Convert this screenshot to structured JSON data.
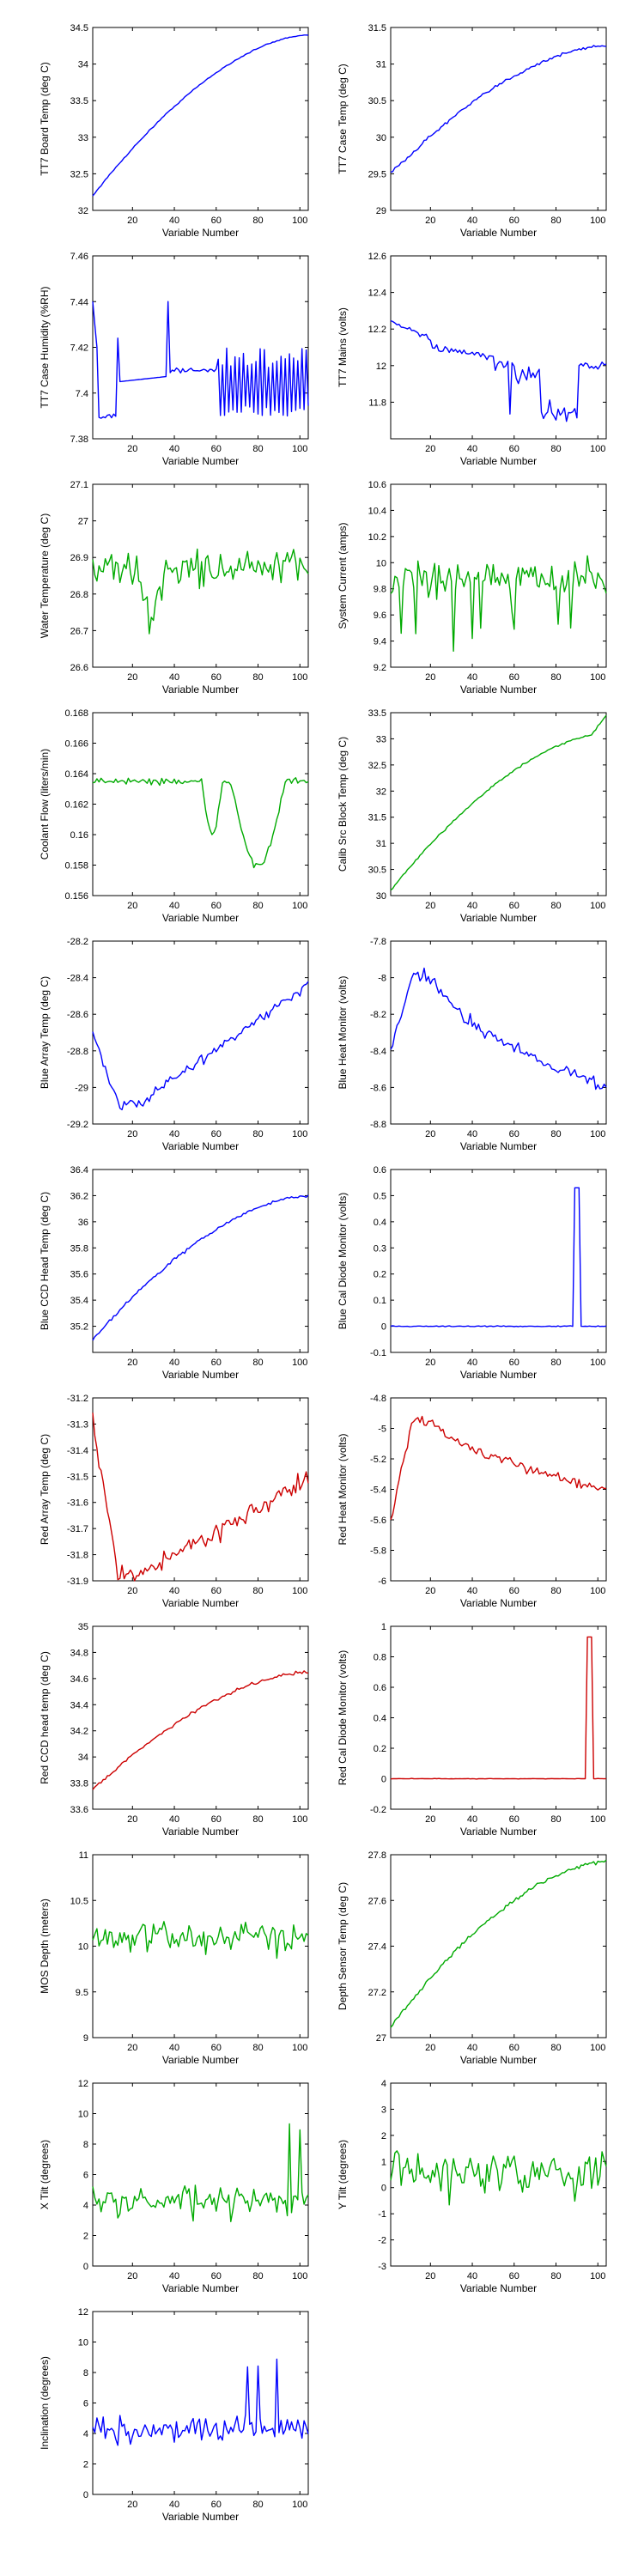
{
  "chart_data": [
    {
      "type": "line",
      "ylabel": "TT7 Board Temp (deg C)",
      "xlabel": "Variable Number",
      "color": "#0000ff",
      "xlim": [
        1,
        104
      ],
      "ylim": [
        32,
        34.5
      ],
      "yticks": [
        32,
        32.5,
        33,
        33.5,
        34,
        34.5
      ],
      "xticks": [
        20,
        40,
        60,
        80,
        100
      ],
      "gen": {
        "kind": "trend",
        "start": 32.2,
        "end": 34.4,
        "noise": 0.015,
        "shape": "concave"
      }
    },
    {
      "type": "line",
      "ylabel": "TT7 Case Temp (deg C)",
      "xlabel": "Variable Number",
      "color": "#0000ff",
      "xlim": [
        1,
        104
      ],
      "ylim": [
        29,
        31.5
      ],
      "yticks": [
        29,
        29.5,
        30,
        30.5,
        31,
        31.5
      ],
      "xticks": [
        20,
        40,
        60,
        80,
        100
      ],
      "gen": {
        "kind": "trend",
        "start": 29.5,
        "end": 31.25,
        "noise": 0.04,
        "shape": "concave"
      }
    },
    {
      "type": "line",
      "ylabel": "TT7 Case Humidity (%RH)",
      "xlabel": "Variable Number",
      "color": "#0000ff",
      "xlim": [
        1,
        104
      ],
      "ylim": [
        7.38,
        7.46
      ],
      "yticks": [
        7.38,
        7.4,
        7.42,
        7.44,
        7.46
      ],
      "xticks": [
        20,
        40,
        60,
        80,
        100
      ],
      "gen": {
        "kind": "humidity"
      }
    },
    {
      "type": "line",
      "ylabel": "TT7 Mains  (volts)",
      "xlabel": "Variable Number",
      "color": "#0000ff",
      "xlim": [
        1,
        104
      ],
      "ylim": [
        11.6,
        12.6
      ],
      "yticks": [
        11.8,
        12,
        12.2,
        12.4,
        12.6
      ],
      "xticks": [
        20,
        40,
        60,
        80,
        100
      ],
      "gen": {
        "kind": "mains"
      }
    },
    {
      "type": "line",
      "ylabel": "Water Temperature (deg C)",
      "xlabel": "Variable Number",
      "color": "#00aa00",
      "xlim": [
        1,
        104
      ],
      "ylim": [
        26.6,
        27.1
      ],
      "yticks": [
        26.6,
        26.7,
        26.8,
        26.9,
        27,
        27.1
      ],
      "xticks": [
        20,
        40,
        60,
        80,
        100
      ],
      "gen": {
        "kind": "noisy",
        "base": 26.87,
        "amp": 0.06,
        "dip": [
          20,
          35,
          26.72
        ]
      }
    },
    {
      "type": "line",
      "ylabel": "System Current (amps)",
      "xlabel": "Variable Number",
      "color": "#00aa00",
      "xlim": [
        1,
        104
      ],
      "ylim": [
        9.2,
        10.6
      ],
      "yticks": [
        9.2,
        9.4,
        9.6,
        9.8,
        10,
        10.2,
        10.4,
        10.6
      ],
      "xticks": [
        20,
        40,
        60,
        80,
        100
      ],
      "gen": {
        "kind": "noisy",
        "base": 9.88,
        "amp": 0.17,
        "spikes": true
      }
    },
    {
      "type": "line",
      "ylabel": "Coolant Flow (liters/min)",
      "xlabel": "Variable Number",
      "color": "#00aa00",
      "xlim": [
        1,
        104
      ],
      "ylim": [
        0.156,
        0.168
      ],
      "yticks": [
        0.156,
        0.158,
        0.16,
        0.162,
        0.164,
        0.166,
        0.168
      ],
      "xticks": [
        20,
        40,
        60,
        80,
        100
      ],
      "gen": {
        "kind": "coolant"
      }
    },
    {
      "type": "line",
      "ylabel": "Calib Src Block Temp (deg C)",
      "xlabel": "Variable Number",
      "color": "#00aa00",
      "xlim": [
        1,
        104
      ],
      "ylim": [
        30,
        33.5
      ],
      "yticks": [
        30,
        30.5,
        31,
        31.5,
        32,
        32.5,
        33,
        33.5
      ],
      "xticks": [
        20,
        40,
        60,
        80,
        100
      ],
      "gen": {
        "kind": "trend",
        "start": 30.1,
        "end": 33.1,
        "noise": 0.03,
        "shape": "concave",
        "tail": 0.35
      }
    },
    {
      "type": "line",
      "ylabel": "Blue Array Temp (deg C)",
      "xlabel": "Variable Number",
      "color": "#0000ff",
      "xlim": [
        1,
        104
      ],
      "ylim": [
        -29.2,
        -28.2
      ],
      "yticks": [
        -29.2,
        -29,
        -28.8,
        -28.6,
        -28.4,
        -28.2
      ],
      "xticks": [
        20,
        40,
        60,
        80,
        100
      ],
      "gen": {
        "kind": "array",
        "start": -28.7,
        "low": -29.1,
        "end": -28.5,
        "noise": 0.05
      }
    },
    {
      "type": "line",
      "ylabel": "Blue Heat Monitor (volts)",
      "xlabel": "Variable Number",
      "color": "#0000ff",
      "xlim": [
        1,
        104
      ],
      "ylim": [
        -8.8,
        -7.8
      ],
      "yticks": [
        -8.8,
        -8.6,
        -8.4,
        -8.2,
        -8,
        -7.8
      ],
      "xticks": [
        20,
        40,
        60,
        80,
        100
      ],
      "gen": {
        "kind": "heat",
        "start": -8.4,
        "peak": -8.0,
        "end": -8.6,
        "noise": 0.06
      }
    },
    {
      "type": "line",
      "ylabel": "Blue CCD Head Temp (deg C)",
      "xlabel": "Variable Number",
      "color": "#0000ff",
      "xlim": [
        1,
        104
      ],
      "ylim": [
        35,
        36.4
      ],
      "yticks": [
        35.2,
        35.4,
        35.6,
        35.8,
        36,
        36.2,
        36.4
      ],
      "xticks": [
        20,
        40,
        60,
        80,
        100
      ],
      "gen": {
        "kind": "trend",
        "start": 35.1,
        "end": 36.2,
        "noise": 0.02,
        "shape": "concave"
      }
    },
    {
      "type": "line",
      "ylabel": "Blue Cal Diode Monitor (volts)",
      "xlabel": "Variable Number",
      "color": "#0000ff",
      "xlim": [
        1,
        104
      ],
      "ylim": [
        -0.1,
        0.6
      ],
      "yticks": [
        -0.1,
        0,
        0.1,
        0.2,
        0.3,
        0.4,
        0.5,
        0.6
      ],
      "xticks": [
        20,
        40,
        60,
        80,
        100
      ],
      "gen": {
        "kind": "pulse",
        "base": 0,
        "peak": 0.53,
        "at": [
          89,
          91
        ]
      }
    },
    {
      "type": "line",
      "ylabel": "Red Array Temp (deg C)",
      "xlabel": "Variable Number",
      "color": "#cc0000",
      "xlim": [
        1,
        104
      ],
      "ylim": [
        -31.9,
        -31.2
      ],
      "yticks": [
        -31.9,
        -31.8,
        -31.7,
        -31.6,
        -31.5,
        -31.4,
        -31.3,
        -31.2
      ],
      "xticks": [
        20,
        40,
        60,
        80,
        100
      ],
      "gen": {
        "kind": "array",
        "start": -31.3,
        "low": -31.88,
        "end": -31.55,
        "noise": 0.06
      }
    },
    {
      "type": "line",
      "ylabel": "Red Heat Monitor (volts)",
      "xlabel": "Variable Number",
      "color": "#cc0000",
      "xlim": [
        1,
        104
      ],
      "ylim": [
        -6,
        -4.8
      ],
      "yticks": [
        -6,
        -5.8,
        -5.6,
        -5.4,
        -5.2,
        -5,
        -4.8
      ],
      "xticks": [
        20,
        40,
        60,
        80,
        100
      ],
      "gen": {
        "kind": "heat",
        "start": -5.6,
        "peak": -4.95,
        "end": -5.4,
        "noise": 0.05
      }
    },
    {
      "type": "line",
      "ylabel": "Red CCD head temp (deg C)",
      "xlabel": "Variable Number",
      "color": "#cc0000",
      "xlim": [
        1,
        104
      ],
      "ylim": [
        33.6,
        35
      ],
      "yticks": [
        33.6,
        33.8,
        34,
        34.2,
        34.4,
        34.6,
        34.8,
        35
      ],
      "xticks": [
        20,
        40,
        60,
        80,
        100
      ],
      "gen": {
        "kind": "trend",
        "start": 33.75,
        "end": 34.65,
        "noise": 0.02,
        "shape": "concave"
      }
    },
    {
      "type": "line",
      "ylabel": "Red Cal Diode Monitor (volts)",
      "xlabel": "Variable Number",
      "color": "#cc0000",
      "xlim": [
        1,
        104
      ],
      "ylim": [
        -0.2,
        1
      ],
      "yticks": [
        -0.2,
        0,
        0.2,
        0.4,
        0.6,
        0.8,
        1
      ],
      "xticks": [
        20,
        40,
        60,
        80,
        100
      ],
      "gen": {
        "kind": "pulse",
        "base": 0,
        "peak": 0.93,
        "at": [
          95,
          97
        ]
      }
    },
    {
      "type": "line",
      "ylabel": "MOS Depth  (meters)",
      "xlabel": "Variable Number",
      "color": "#00aa00",
      "xlim": [
        1,
        104
      ],
      "ylim": [
        9,
        11
      ],
      "yticks": [
        9,
        9.5,
        10,
        10.5,
        11
      ],
      "xticks": [
        20,
        40,
        60,
        80,
        100
      ],
      "gen": {
        "kind": "noisy",
        "base": 10.1,
        "amp": 0.2
      }
    },
    {
      "type": "line",
      "ylabel": "Depth Sensor Temp (deg C)",
      "xlabel": "Variable Number",
      "color": "#00aa00",
      "xlim": [
        1,
        104
      ],
      "ylim": [
        27,
        27.8
      ],
      "yticks": [
        27,
        27.2,
        27.4,
        27.6,
        27.8
      ],
      "xticks": [
        20,
        40,
        60,
        80,
        100
      ],
      "gen": {
        "kind": "trend",
        "start": 27.05,
        "end": 27.77,
        "noise": 0.015,
        "shape": "concave"
      }
    },
    {
      "type": "line",
      "ylabel": "X Tilt  (degrees)",
      "xlabel": "Variable Number",
      "color": "#00aa00",
      "xlim": [
        1,
        104
      ],
      "ylim": [
        0,
        12
      ],
      "yticks": [
        0,
        2,
        4,
        6,
        8,
        10,
        12
      ],
      "xticks": [
        20,
        40,
        60,
        80,
        100
      ],
      "gen": {
        "kind": "noisy",
        "base": 4.2,
        "amp": 1.2,
        "big": true
      }
    },
    {
      "type": "line",
      "ylabel": "Y Tilt  (degrees)",
      "xlabel": "Variable Number",
      "color": "#00aa00",
      "xlim": [
        1,
        104
      ],
      "ylim": [
        -3,
        4
      ],
      "yticks": [
        -3,
        -2,
        -1,
        0,
        1,
        2,
        3,
        4
      ],
      "xticks": [
        20,
        40,
        60,
        80,
        100
      ],
      "gen": {
        "kind": "noisy",
        "base": 0.6,
        "amp": 1.0
      }
    },
    {
      "type": "line",
      "ylabel": "Inclination  (degrees)",
      "xlabel": "Variable Number",
      "color": "#0000ff",
      "xlim": [
        1,
        104
      ],
      "ylim": [
        0,
        12
      ],
      "yticks": [
        0,
        2,
        4,
        6,
        8,
        10,
        12
      ],
      "xticks": [
        20,
        40,
        60,
        80,
        100
      ],
      "gen": {
        "kind": "noisy",
        "base": 4.3,
        "amp": 1.0,
        "big": true
      }
    }
  ]
}
